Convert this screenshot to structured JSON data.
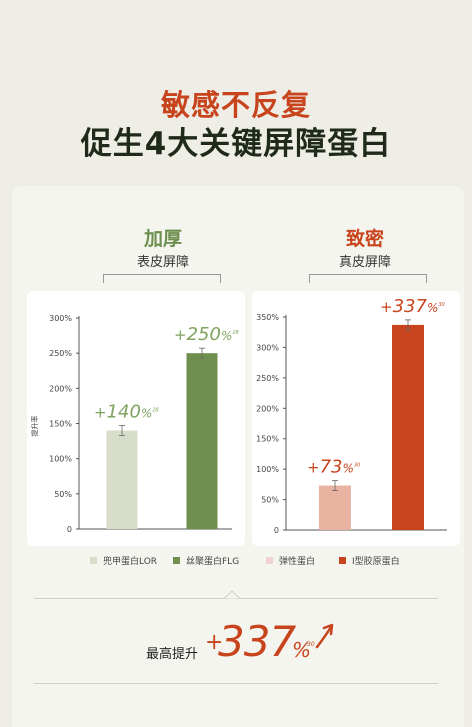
{
  "headline": {
    "line1": "敏感不反复",
    "line2": "促生4大关键屏障蛋白"
  },
  "groups": [
    {
      "title": "加厚",
      "subtitle": "表皮屏障",
      "title_color": "#6d8f4e"
    },
    {
      "title": "致密",
      "subtitle": "真皮屏障",
      "title_color": "#c8441d"
    }
  ],
  "chart_data": [
    {
      "type": "bar",
      "ylabel": "提升率",
      "categories": [
        "兜甲蛋白LOR",
        "丝聚蛋白FLG"
      ],
      "values": [
        140,
        250
      ],
      "value_labels": [
        {
          "sign": "+",
          "num": "140",
          "unit": "%",
          "note": "28"
        },
        {
          "sign": "+",
          "num": "250",
          "unit": "%",
          "note": "28"
        }
      ],
      "colors": [
        "#d8ddc9",
        "#6f8f4f"
      ],
      "label_color": "#7fa35f",
      "ylim": [
        0,
        300
      ],
      "ticks": [
        0,
        50,
        100,
        150,
        200,
        250,
        300
      ],
      "tick_labels": [
        "0",
        "50%",
        "100%",
        "150%",
        "200%",
        "250%",
        "300%"
      ]
    },
    {
      "type": "bar",
      "categories": [
        "弹性蛋白",
        "I型胶原蛋白"
      ],
      "values": [
        73,
        337
      ],
      "value_labels": [
        {
          "sign": "+",
          "num": "73",
          "unit": "%",
          "note": "30"
        },
        {
          "sign": "+",
          "num": "337",
          "unit": "%",
          "note": "30"
        }
      ],
      "colors": [
        "#e9b3a2",
        "#c8441d"
      ],
      "label_color": "#c8441d",
      "ylim": [
        0,
        350
      ],
      "ticks": [
        0,
        50,
        100,
        150,
        200,
        250,
        300,
        350
      ],
      "tick_labels": [
        "0",
        "50%",
        "100%",
        "150%",
        "200%",
        "250%",
        "300%",
        "350%"
      ]
    }
  ],
  "legend": [
    {
      "label": "兜甲蛋白LOR",
      "color": "#d8ddc9"
    },
    {
      "label": "丝聚蛋白FLG",
      "color": "#6f8f4f"
    },
    {
      "label": "弹性蛋白",
      "color": "#f1d3d3"
    },
    {
      "label": "I型胶原蛋白",
      "color": "#c8441d"
    }
  ],
  "summary": {
    "label": "最高提升",
    "plus": "+",
    "value": "337",
    "unit": "%",
    "note": "30"
  }
}
